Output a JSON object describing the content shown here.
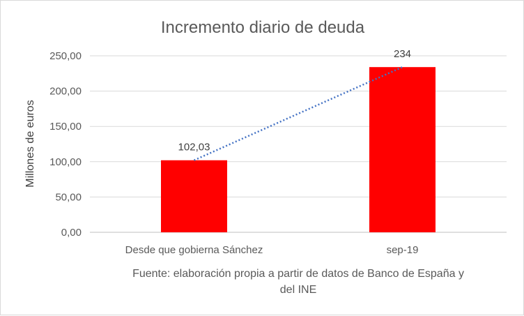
{
  "chart_data": {
    "type": "bar",
    "title": "Incremento diario de deuda",
    "ylabel": "Millones de euros",
    "xlabel": "",
    "categories": [
      "Desde que gobierna Sánchez",
      "sep-19"
    ],
    "values": [
      102.03,
      234
    ],
    "data_labels": [
      "102,03",
      "234"
    ],
    "ylim": [
      0,
      250
    ],
    "yticks": [
      "0,00",
      "50,00",
      "100,00",
      "150,00",
      "200,00",
      "250,00"
    ],
    "grid": true,
    "trendline": "linear, dotted",
    "legend": "none",
    "colors": {
      "bar": "#ff0000",
      "trendline": "#4472c4",
      "grid": "#d9d9d9",
      "text": "#595959"
    },
    "source_lines": [
      "Fuente: elaboración propia a partir de datos de Banco de España y",
      "del INE"
    ]
  }
}
